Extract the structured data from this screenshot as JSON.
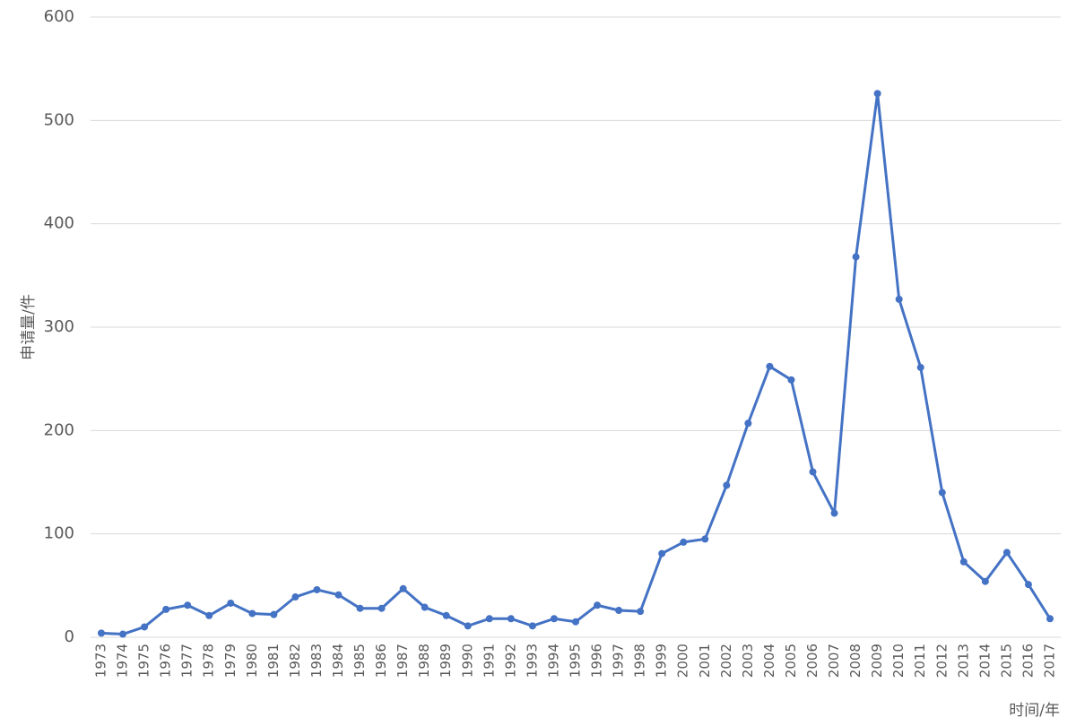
{
  "chart_data": {
    "type": "line",
    "y_label": "申请量/件",
    "x_label": "时间/年",
    "categories": [
      "1973",
      "1974",
      "1975",
      "1976",
      "1977",
      "1978",
      "1979",
      "1980",
      "1981",
      "1982",
      "1983",
      "1984",
      "1985",
      "1986",
      "1987",
      "1988",
      "1989",
      "1990",
      "1991",
      "1992",
      "1993",
      "1994",
      "1995",
      "1996",
      "1997",
      "1998",
      "1999",
      "2000",
      "2001",
      "2002",
      "2003",
      "2004",
      "2005",
      "2006",
      "2007",
      "2008",
      "2009",
      "2010",
      "2011",
      "2012",
      "2013",
      "2014",
      "2015",
      "2016",
      "2017"
    ],
    "values": [
      4,
      3,
      10,
      27,
      31,
      21,
      33,
      23,
      22,
      39,
      46,
      41,
      28,
      28,
      47,
      29,
      21,
      11,
      18,
      18,
      11,
      18,
      15,
      31,
      26,
      25,
      81,
      92,
      95,
      147,
      207,
      262,
      249,
      160,
      120,
      368,
      526,
      327,
      261,
      140,
      73,
      54,
      82,
      51,
      18
    ],
    "color": "#4472c4",
    "ylim": [
      0,
      600
    ],
    "yticks": [
      0,
      100,
      200,
      300,
      400,
      500,
      600
    ],
    "grid": true
  }
}
